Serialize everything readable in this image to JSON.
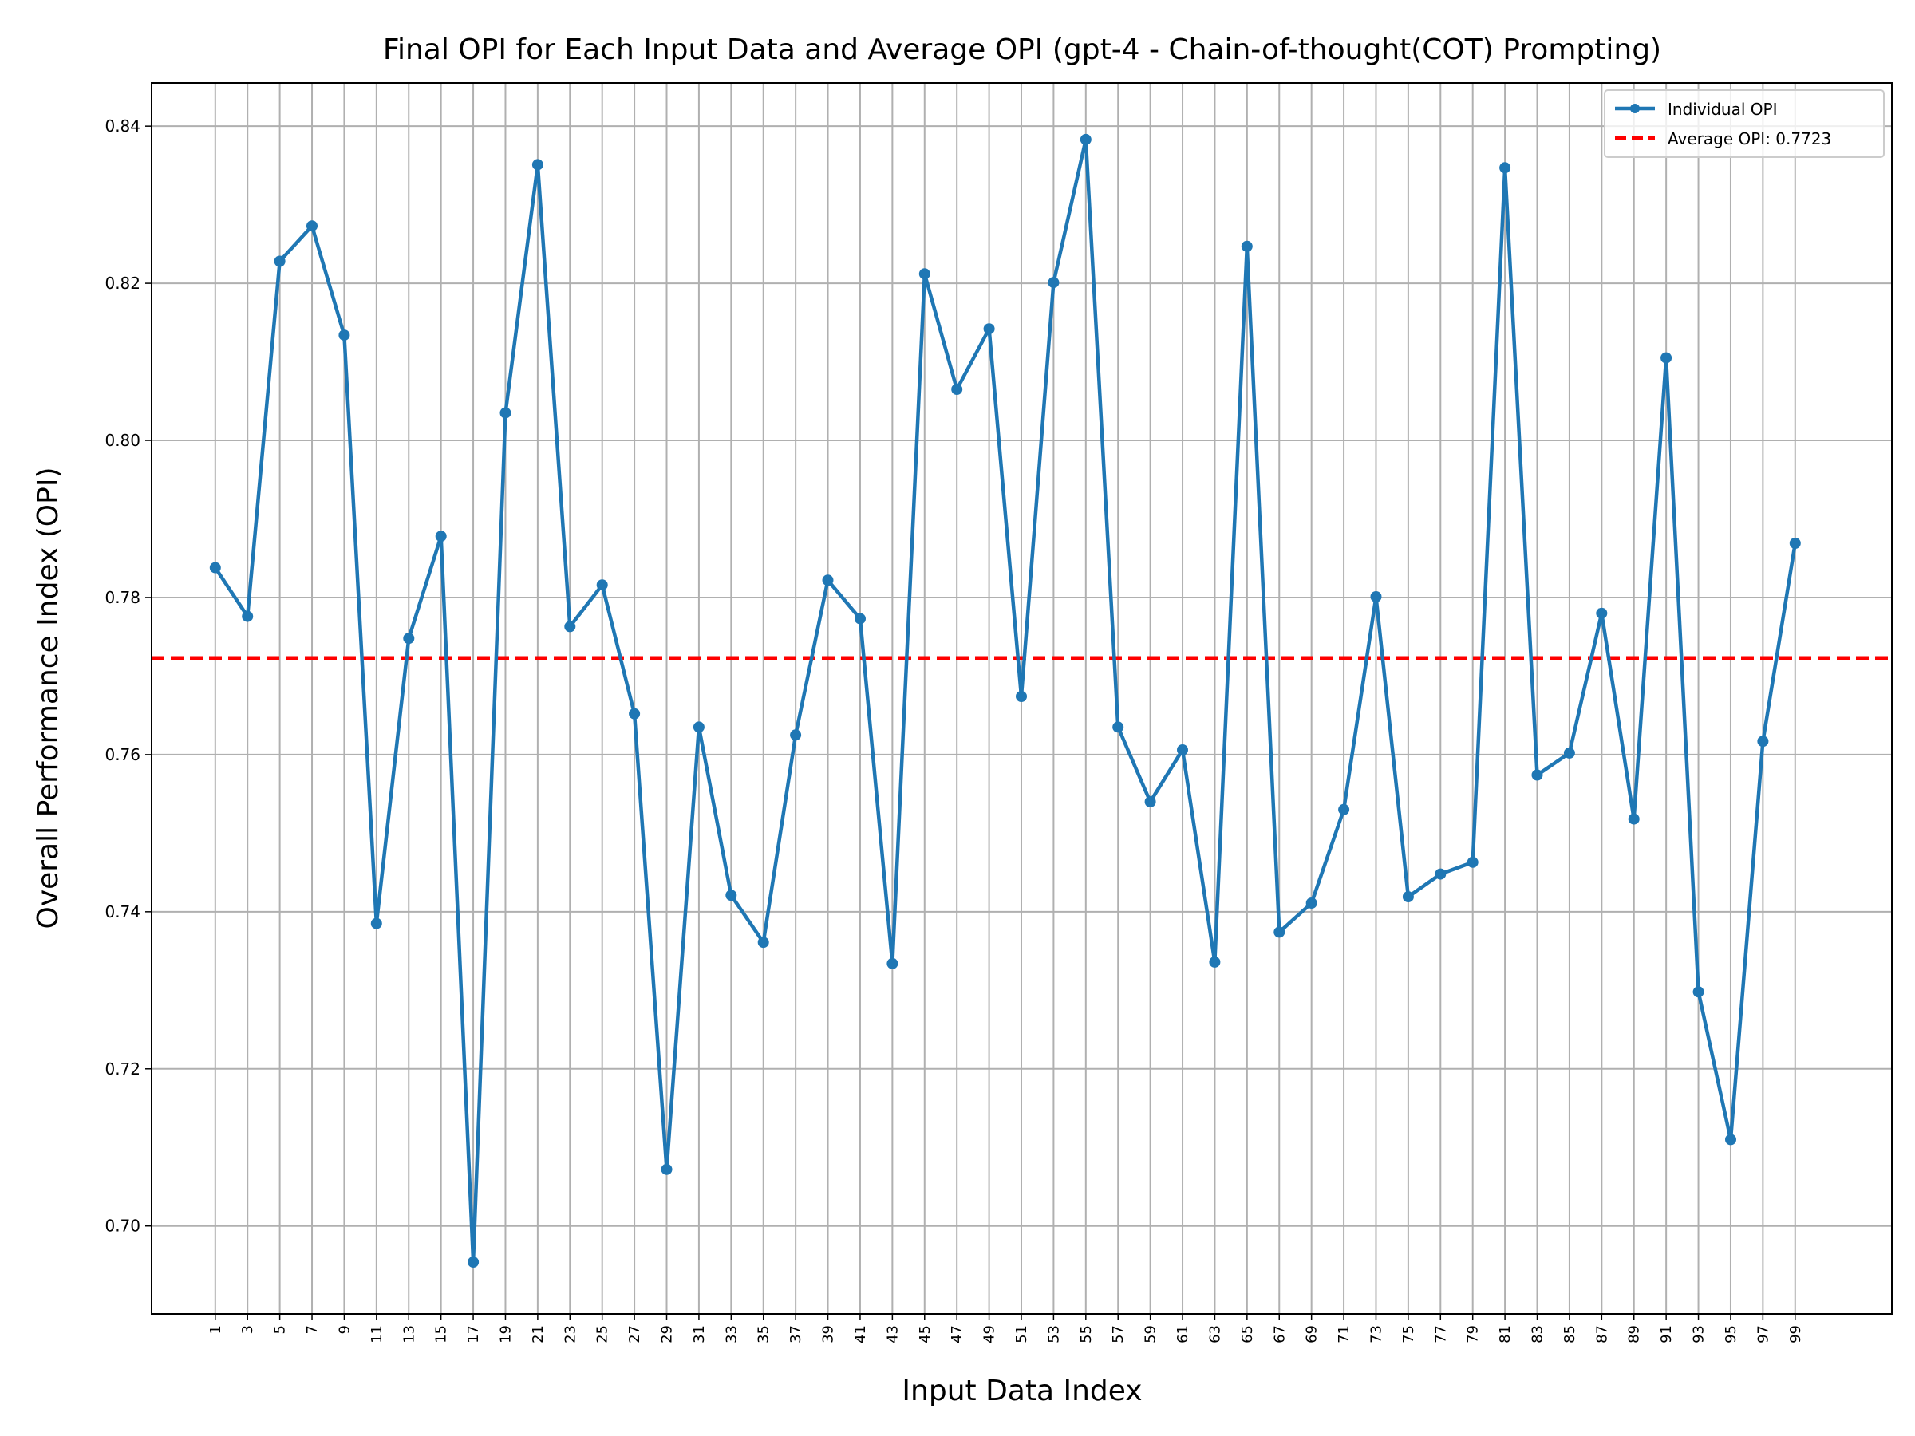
{
  "chart_data": {
    "type": "line",
    "title": "Final OPI for Each Input Data and Average OPI (gpt-4 - Chain-of-thought(COT) Prompting)",
    "xlabel": "Input Data Index",
    "ylabel": "Overall Performance Index (OPI)",
    "xlim": [
      -2.95,
      105.0
    ],
    "ylim": [
      0.6888,
      0.8455
    ],
    "x_ticks": [
      1,
      3,
      5,
      7,
      9,
      11,
      13,
      15,
      17,
      19,
      21,
      23,
      25,
      27,
      29,
      31,
      33,
      35,
      37,
      39,
      41,
      43,
      45,
      47,
      49,
      51,
      53,
      55,
      57,
      59,
      61,
      63,
      65,
      67,
      69,
      71,
      73,
      75,
      77,
      79,
      81,
      83,
      85,
      87,
      89,
      91,
      93,
      95,
      97,
      99
    ],
    "y_ticks": [
      "0.70",
      "0.72",
      "0.74",
      "0.76",
      "0.78",
      "0.80",
      "0.82",
      "0.84"
    ],
    "y_tick_values": [
      0.7,
      0.72,
      0.74,
      0.76,
      0.78,
      0.8,
      0.82,
      0.84
    ],
    "grid": true,
    "legend_position": "top-right",
    "series": [
      {
        "name": "Individual OPI",
        "color": "#1f77b4",
        "x": [
          1,
          3,
          5,
          7,
          9,
          11,
          13,
          15,
          17,
          19,
          21,
          23,
          25,
          27,
          29,
          31,
          33,
          35,
          37,
          39,
          41,
          43,
          45,
          47,
          49,
          51,
          53,
          55,
          57,
          59,
          61,
          63,
          65,
          67,
          69,
          71,
          73,
          75,
          77,
          79,
          81,
          83,
          85,
          87,
          89,
          91,
          93,
          95,
          97,
          99
        ],
        "values": [
          0.7838,
          0.7776,
          0.8228,
          0.8273,
          0.8134,
          0.7385,
          0.7748,
          0.7878,
          0.6954,
          0.8035,
          0.8351,
          0.7763,
          0.7816,
          0.7652,
          0.7072,
          0.7635,
          0.7421,
          0.7361,
          0.7625,
          0.7822,
          0.7773,
          0.7334,
          0.8212,
          0.8065,
          0.8142,
          0.7674,
          0.8201,
          0.8383,
          0.7635,
          0.754,
          0.7606,
          0.7336,
          0.8247,
          0.7374,
          0.7411,
          0.753,
          0.7801,
          0.7419,
          0.7448,
          0.7463,
          0.8347,
          0.7574,
          0.7602,
          0.778,
          0.7518,
          0.8105,
          0.7298,
          0.711,
          0.7617,
          0.7869
        ]
      }
    ],
    "reference_line": {
      "name": "Average OPI: 0.7723",
      "value": 0.7723,
      "color": "#ff0000",
      "style": "dashed"
    }
  }
}
